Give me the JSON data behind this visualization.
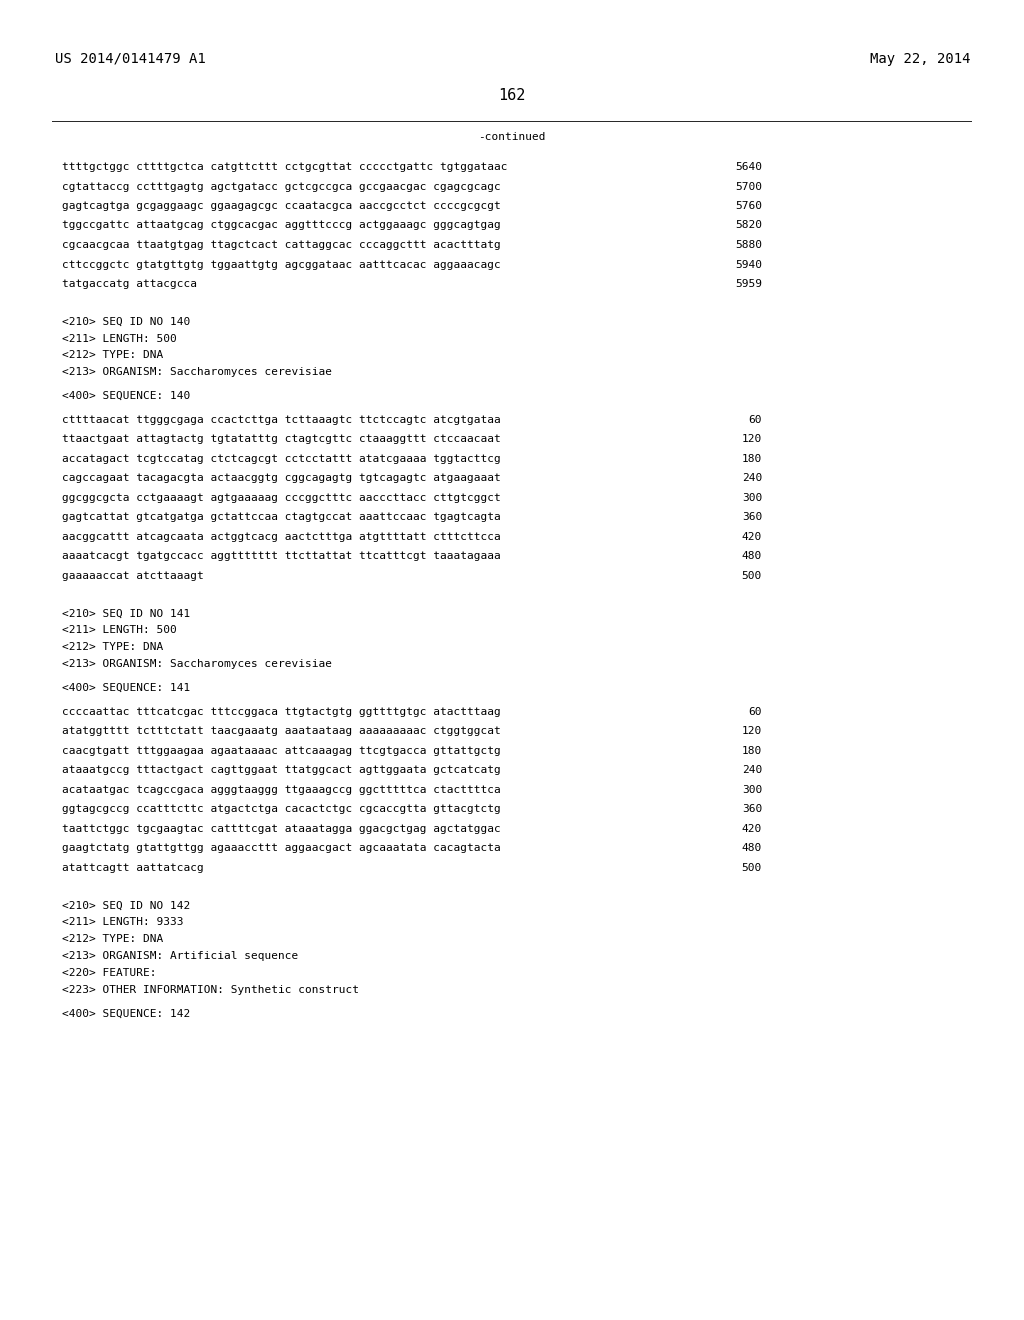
{
  "header_left": "US 2014/0141479 A1",
  "header_right": "May 22, 2014",
  "page_number": "162",
  "continued_label": "-continued",
  "background_color": "#ffffff",
  "text_color": "#000000",
  "font_size_header": 10.0,
  "font_size_body": 8.0,
  "font_size_page": 11.0,
  "sequence_lines": [
    [
      "ttttgctggc cttttgctca catgttcttt cctgcgttat ccccctgattc tgtggataac",
      "5640"
    ],
    [
      "cgtattaccg cctttgagtg agctgatacc gctcgccgca gccgaacgac cgagcgcagc",
      "5700"
    ],
    [
      "gagtcagtga gcgaggaagc ggaagagcgc ccaatacgca aaccgcctct ccccgcgcgt",
      "5760"
    ],
    [
      "tggccgattc attaatgcag ctggcacgac aggtttcccg actggaaagc gggcagtgag",
      "5820"
    ],
    [
      "cgcaacgcaa ttaatgtgag ttagctcact cattaggcac cccaggcttt acactttatg",
      "5880"
    ],
    [
      "cttccggctc gtatgttgtg tggaattgtg agcggataac aatttcacac aggaaacagc",
      "5940"
    ],
    [
      "tatgaccatg attacgcca",
      "5959"
    ]
  ],
  "seq_meta_140": [
    "<210> SEQ ID NO 140",
    "<211> LENGTH: 500",
    "<212> TYPE: DNA",
    "<213> ORGANISM: Saccharomyces cerevisiae"
  ],
  "seq_400_140": "<400> SEQUENCE: 140",
  "seq_lines_140": [
    [
      "cttttaacat ttgggcgaga ccactcttga tcttaaagtc ttctccagtc atcgtgataa",
      "60"
    ],
    [
      "ttaactgaat attagtactg tgtatatttg ctagtcgttc ctaaaggttt ctccaacaat",
      "120"
    ],
    [
      "accatagact tcgtccatag ctctcagcgt cctcctattt atatcgaaaa tggtacttcg",
      "180"
    ],
    [
      "cagccagaat tacagacgta actaacggtg cggcagagtg tgtcagagtc atgaagaaat",
      "240"
    ],
    [
      "ggcggcgcta cctgaaaagt agtgaaaaag cccggctttc aacccttacc cttgtcggct",
      "300"
    ],
    [
      "gagtcattat gtcatgatga gctattccaa ctagtgccat aaattccaac tgagtcagta",
      "360"
    ],
    [
      "aacggcattt atcagcaata actggtcacg aactctttga atgttttatt ctttcttcca",
      "420"
    ],
    [
      "aaaatcacgt tgatgccacc aggttttttt ttcttattat ttcatttcgt taaatagaaa",
      "480"
    ],
    [
      "gaaaaaccat atcttaaagt",
      "500"
    ]
  ],
  "seq_meta_141": [
    "<210> SEQ ID NO 141",
    "<211> LENGTH: 500",
    "<212> TYPE: DNA",
    "<213> ORGANISM: Saccharomyces cerevisiae"
  ],
  "seq_400_141": "<400> SEQUENCE: 141",
  "seq_lines_141": [
    [
      "ccccaattac tttcatcgac tttccggaca ttgtactgtg ggttttgtgc atactttaag",
      "60"
    ],
    [
      "atatggtttt tctttctatt taacgaaatg aaataataag aaaaaaaaac ctggtggcat",
      "120"
    ],
    [
      "caacgtgatt tttggaagaa agaataaaac attcaaagag ttcgtgacca gttattgctg",
      "180"
    ],
    [
      "ataaatgccg tttactgact cagttggaat ttatggcact agttggaata gctcatcatg",
      "240"
    ],
    [
      "acataatgac tcagccgaca agggtaaggg ttgaaagccg ggctttttca ctacttttca",
      "300"
    ],
    [
      "ggtagcgccg ccatttcttc atgactctga cacactctgc cgcaccgtta gttacgtctg",
      "360"
    ],
    [
      "taattctggc tgcgaagtac cattttcgat ataaatagga ggacgctgag agctatggac",
      "420"
    ],
    [
      "gaagtctatg gtattgttgg agaaaccttt aggaacgact agcaaatata cacagtacta",
      "480"
    ],
    [
      "atattcagtt aattatcacg",
      "500"
    ]
  ],
  "seq_meta_142": [
    "<210> SEQ ID NO 142",
    "<211> LENGTH: 9333",
    "<212> TYPE: DNA",
    "<213> ORGANISM: Artificial sequence",
    "<220> FEATURE:",
    "<223> OTHER INFORMATION: Synthetic construct"
  ],
  "seq_400_142": "<400> SEQUENCE: 142"
}
